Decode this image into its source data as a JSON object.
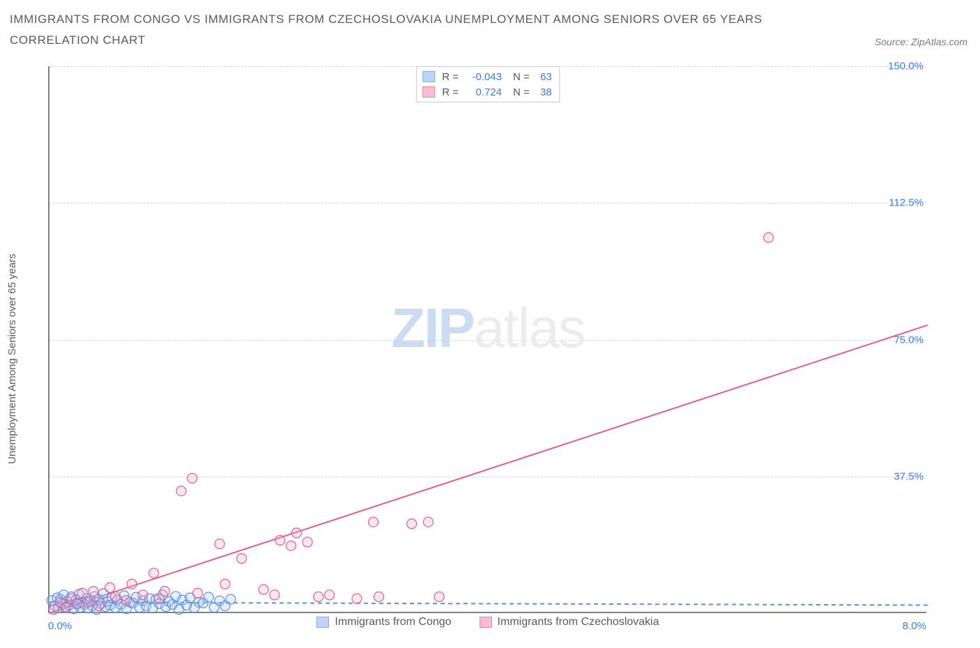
{
  "header": {
    "title_line1": "IMMIGRANTS FROM CONGO VS IMMIGRANTS FROM CZECHOSLOVAKIA UNEMPLOYMENT AMONG SENIORS OVER 65 YEARS",
    "title_line2": "CORRELATION CHART",
    "source": "Source: ZipAtlas.com"
  },
  "watermark": {
    "part1": "ZIP",
    "part2": "atlas"
  },
  "chart": {
    "type": "scatter",
    "y_axis_label": "Unemployment Among Seniors over 65 years",
    "x_range": [
      0,
      8
    ],
    "y_range": [
      0,
      150
    ],
    "x_ticks": [
      {
        "val": 0,
        "label": "0.0%",
        "color": "#3b78e7"
      },
      {
        "val": 8,
        "label": "8.0%",
        "color": "#3b78e7"
      }
    ],
    "y_ticks": [
      {
        "val": 37.5,
        "label": "37.5%",
        "color": "#3b78e7"
      },
      {
        "val": 75.0,
        "label": "75.0%",
        "color": "#3b78e7"
      },
      {
        "val": 112.5,
        "label": "112.5%",
        "color": "#3b78e7"
      },
      {
        "val": 150.0,
        "label": "150.0%",
        "color": "#3b78e7"
      }
    ],
    "grid_color": "#d8d8d8",
    "background_color": "#ffffff",
    "axis_color": "#808080",
    "marker_radius": 7,
    "marker_stroke_width": 1.2,
    "marker_fill_opacity": 0.28,
    "line_width": 2,
    "series": [
      {
        "name": "Immigrants from Congo",
        "color_stroke": "#5a8fe6",
        "color_fill": "#a9c6f2",
        "R": "-0.043",
        "N": "63",
        "trend": {
          "x1": 0,
          "y1": 3.0,
          "x2": 8,
          "y2": 2.2,
          "dash": "6,5"
        },
        "points": [
          [
            0.02,
            3.5
          ],
          [
            0.05,
            2.0
          ],
          [
            0.07,
            4.2
          ],
          [
            0.08,
            1.5
          ],
          [
            0.1,
            3.8
          ],
          [
            0.12,
            2.6
          ],
          [
            0.13,
            5.0
          ],
          [
            0.15,
            1.8
          ],
          [
            0.16,
            3.2
          ],
          [
            0.18,
            2.2
          ],
          [
            0.2,
            4.5
          ],
          [
            0.22,
            1.2
          ],
          [
            0.24,
            3.6
          ],
          [
            0.25,
            2.8
          ],
          [
            0.27,
            5.2
          ],
          [
            0.28,
            1.6
          ],
          [
            0.3,
            3.0
          ],
          [
            0.32,
            2.4
          ],
          [
            0.34,
            4.0
          ],
          [
            0.35,
            1.4
          ],
          [
            0.37,
            3.4
          ],
          [
            0.39,
            2.0
          ],
          [
            0.41,
            4.6
          ],
          [
            0.43,
            1.0
          ],
          [
            0.45,
            3.8
          ],
          [
            0.47,
            2.6
          ],
          [
            0.49,
            5.4
          ],
          [
            0.51,
            1.8
          ],
          [
            0.53,
            3.2
          ],
          [
            0.55,
            2.2
          ],
          [
            0.57,
            4.2
          ],
          [
            0.6,
            1.5
          ],
          [
            0.62,
            3.6
          ],
          [
            0.65,
            2.4
          ],
          [
            0.68,
            4.8
          ],
          [
            0.7,
            1.2
          ],
          [
            0.73,
            3.0
          ],
          [
            0.76,
            2.8
          ],
          [
            0.79,
            4.4
          ],
          [
            0.82,
            1.6
          ],
          [
            0.85,
            3.4
          ],
          [
            0.88,
            2.0
          ],
          [
            0.91,
            4.0
          ],
          [
            0.94,
            1.4
          ],
          [
            0.97,
            3.8
          ],
          [
            1.0,
            2.6
          ],
          [
            1.03,
            5.0
          ],
          [
            1.06,
            1.8
          ],
          [
            1.09,
            3.2
          ],
          [
            1.12,
            2.4
          ],
          [
            1.15,
            4.6
          ],
          [
            1.18,
            1.0
          ],
          [
            1.21,
            3.6
          ],
          [
            1.25,
            2.2
          ],
          [
            1.28,
            4.2
          ],
          [
            1.32,
            1.5
          ],
          [
            1.36,
            3.0
          ],
          [
            1.4,
            2.8
          ],
          [
            1.45,
            4.4
          ],
          [
            1.5,
            1.6
          ],
          [
            1.55,
            3.4
          ],
          [
            1.6,
            2.0
          ],
          [
            1.65,
            3.8
          ]
        ]
      },
      {
        "name": "Immigrants from Czechoslovakia",
        "color_stroke": "#e65a8f",
        "color_fill": "#f2a9c6",
        "R": "0.724",
        "N": "38",
        "trend": {
          "x1": 0,
          "y1": 0.0,
          "x2": 8,
          "y2": 79.0,
          "dash": null
        },
        "points": [
          [
            0.04,
            1.0
          ],
          [
            0.1,
            3.0
          ],
          [
            0.15,
            1.5
          ],
          [
            0.2,
            4.0
          ],
          [
            0.25,
            2.5
          ],
          [
            0.3,
            5.5
          ],
          [
            0.35,
            3.0
          ],
          [
            0.4,
            6.0
          ],
          [
            0.45,
            2.0
          ],
          [
            0.55,
            7.0
          ],
          [
            0.6,
            4.5
          ],
          [
            0.7,
            3.5
          ],
          [
            0.75,
            8.0
          ],
          [
            0.85,
            5.0
          ],
          [
            0.95,
            11.0
          ],
          [
            1.0,
            4.0
          ],
          [
            1.05,
            6.0
          ],
          [
            1.2,
            33.5
          ],
          [
            1.3,
            37.0
          ],
          [
            1.35,
            5.5
          ],
          [
            1.55,
            19.0
          ],
          [
            1.6,
            8.0
          ],
          [
            1.75,
            15.0
          ],
          [
            1.95,
            6.5
          ],
          [
            2.1,
            20.0
          ],
          [
            2.2,
            18.5
          ],
          [
            2.25,
            22.0
          ],
          [
            2.35,
            19.5
          ],
          [
            2.45,
            4.5
          ],
          [
            2.55,
            5.0
          ],
          [
            2.8,
            4.0
          ],
          [
            2.95,
            25.0
          ],
          [
            3.0,
            4.5
          ],
          [
            3.3,
            24.5
          ],
          [
            3.45,
            25.0
          ],
          [
            3.55,
            4.5
          ],
          [
            6.55,
            103.0
          ],
          [
            2.05,
            5.0
          ]
        ]
      }
    ],
    "stats_legend_labels": {
      "R": "R =",
      "N": "N ="
    },
    "bottom_legend": true
  }
}
